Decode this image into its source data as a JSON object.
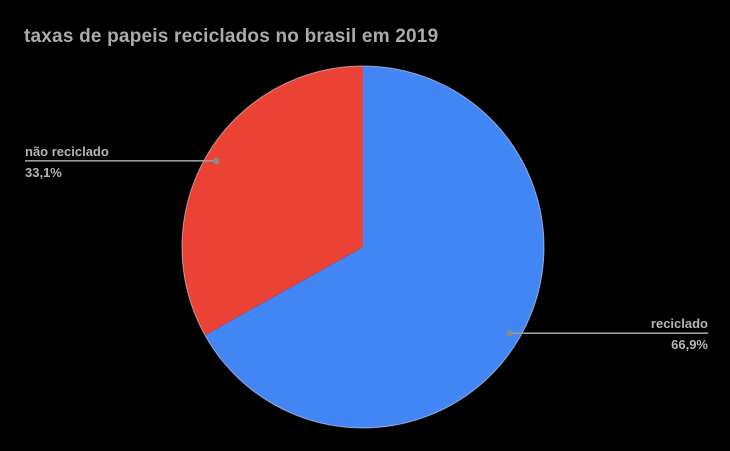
{
  "colors": {
    "background": "#000000",
    "title_text": "#ababab",
    "label_text": "#b5b5b5",
    "leader_line": "#999999",
    "leader_dot": "#8a8a8a",
    "pie_rim": "#ffffff"
  },
  "chart_data": {
    "type": "pie",
    "title": "taxas de papeis reciclados no brasil em 2019",
    "unit": "%",
    "decimal_separator": ",",
    "start_angle_deg": 0,
    "direction": "clockwise",
    "legend_position": "outside-callouts",
    "slices": [
      {
        "label": "reciclado",
        "value": 66.9,
        "display_value": "66,9%",
        "color": "#4285F4",
        "label_side": "right"
      },
      {
        "label": "não reciclado",
        "value": 33.1,
        "display_value": "33,1%",
        "color": "#EA4335",
        "label_side": "left"
      }
    ]
  }
}
